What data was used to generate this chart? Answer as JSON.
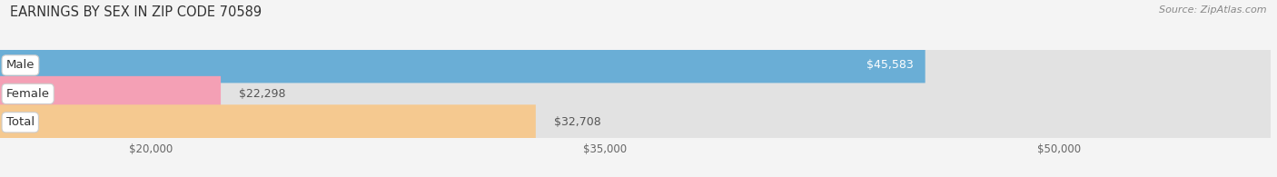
{
  "title": "EARNINGS BY SEX IN ZIP CODE 70589",
  "source_text": "Source: ZipAtlas.com",
  "categories": [
    "Male",
    "Female",
    "Total"
  ],
  "values": [
    45583,
    22298,
    32708
  ],
  "bar_colors": [
    "#6aaed6",
    "#f4a0b5",
    "#f5c990"
  ],
  "value_labels": [
    "$45,583",
    "$22,298",
    "$32,708"
  ],
  "value_inside": [
    true,
    false,
    false
  ],
  "x_ticks": [
    20000,
    35000,
    50000
  ],
  "x_tick_labels": [
    "$20,000",
    "$35,000",
    "$50,000"
  ],
  "xmin": 15000,
  "xmax": 57000,
  "bar_height": 0.62,
  "background_color": "#f4f4f4",
  "bar_bg_color": "#e2e2e2",
  "title_fontsize": 10.5,
  "source_fontsize": 8,
  "label_fontsize": 9.5,
  "value_fontsize": 9,
  "tick_fontsize": 8.5,
  "grid_color": "#cccccc"
}
